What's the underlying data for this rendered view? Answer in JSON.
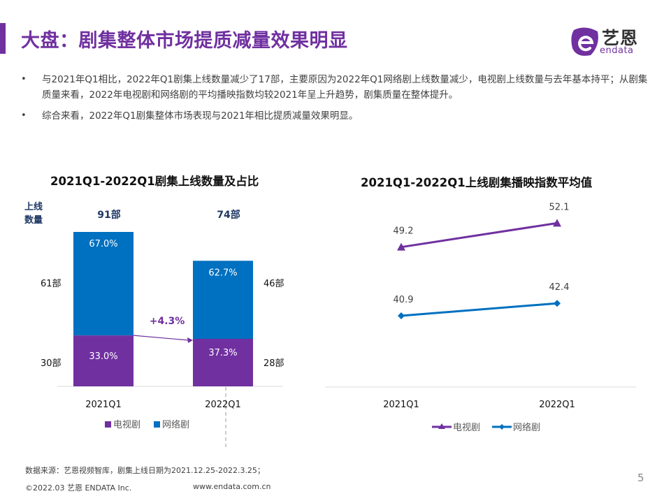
{
  "header": {
    "title": "大盘：剧集整体市场提质减量效果明显",
    "accent_color": "#7030a0",
    "logo": {
      "cn": "艺恩",
      "en": "endata"
    }
  },
  "bullets": [
    "与2021年Q1相比，2022年Q1剧集上线数量减少了17部，主要原因为2022年Q1网络剧上线数量减少，电视剧上线数量与去年基本持平；从剧集质量来看，2022年电视剧和网络剧的平均播映指数均较2021年呈上升趋势，剧集质量在整体提升。",
    "综合来看，2022年Q1剧集整体市场表现与2021年相比提质减量效果明显。"
  ],
  "chart_data": [
    {
      "type": "bar",
      "stacked": true,
      "title": "2021Q1-2022Q1剧集上线数量及占比",
      "ylabel": "上线数量",
      "categories": [
        "2021Q1",
        "2022Q1"
      ],
      "totals": [
        91,
        74
      ],
      "total_labels": [
        "91部",
        "74部"
      ],
      "series": [
        {
          "name": "电视剧",
          "color": "#7030a0",
          "values": [
            30,
            28
          ],
          "value_labels": [
            "30部",
            "28部"
          ],
          "share": [
            33.0,
            37.3
          ],
          "share_labels": [
            "33.0%",
            "37.3%"
          ]
        },
        {
          "name": "网络剧",
          "color": "#0070c0",
          "values": [
            61,
            46
          ],
          "value_labels": [
            "61部",
            "46部"
          ],
          "share": [
            67.0,
            62.7
          ],
          "share_labels": [
            "67.0%",
            "62.7%"
          ]
        }
      ],
      "annotation": {
        "text": "+4.3%",
        "color": "#7030a0"
      },
      "legend": "bottom",
      "grid": false
    },
    {
      "type": "line",
      "title": "2021Q1-2022Q1上线剧集播映指数平均值",
      "categories": [
        "2021Q1",
        "2022Q1"
      ],
      "ylim": [
        36,
        55
      ],
      "series": [
        {
          "name": "电视剧",
          "color": "#7030a0",
          "marker": "triangle",
          "values": [
            49.2,
            52.1
          ],
          "labels": [
            "49.2",
            "52.1"
          ]
        },
        {
          "name": "网络剧",
          "color": "#0070c0",
          "marker": "diamond",
          "values": [
            40.9,
            42.4
          ],
          "labels": [
            "40.9",
            "42.4"
          ]
        }
      ],
      "legend": "bottom",
      "grid": false
    }
  ],
  "footer": {
    "source": "数据来源：艺恩视频智库，剧集上线日期为2021.12.25-2022.3.25；",
    "copyright": "©2022.03 艺恩 ENDATA Inc.",
    "url": "www.endata.com.cn",
    "page_number": "5"
  }
}
